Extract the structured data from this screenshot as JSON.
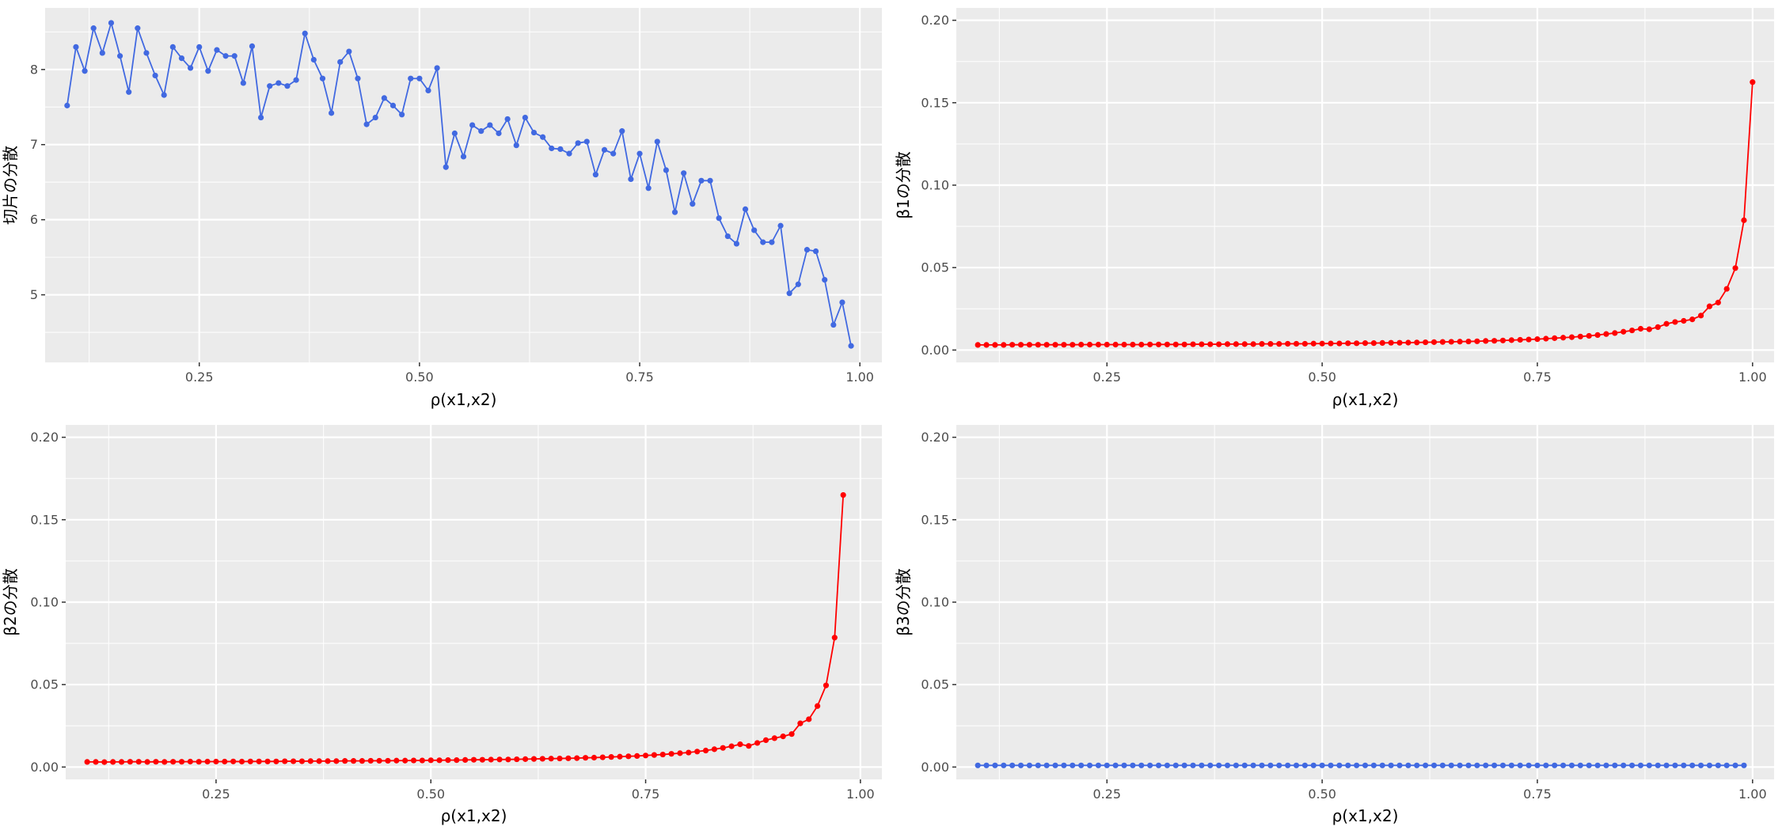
{
  "chart_data": [
    {
      "type": "line",
      "id": "intercept-variance",
      "xlabel": "ρ(x1,x2)",
      "ylabel": "切片の分散",
      "xlim": [
        0.075,
        1.025
      ],
      "ylim": [
        4.1,
        8.82
      ],
      "x_ticks": [
        0.25,
        0.5,
        0.75,
        1.0
      ],
      "x_tick_labels": [
        "0.25",
        "0.50",
        "0.75",
        "1.00"
      ],
      "y_ticks": [
        5,
        6,
        7,
        8
      ],
      "y_tick_labels": [
        "5",
        "6",
        "7",
        "8"
      ],
      "grid": true,
      "color": "#4169E1",
      "x_start": 0.1,
      "x_step": 0.01,
      "values": [
        7.52,
        8.3,
        7.98,
        8.55,
        8.22,
        8.62,
        8.18,
        7.7,
        8.55,
        8.22,
        7.92,
        7.66,
        8.3,
        8.15,
        8.02,
        8.3,
        7.98,
        8.26,
        8.18,
        8.18,
        7.82,
        8.31,
        7.36,
        7.78,
        7.82,
        7.78,
        7.86,
        8.48,
        8.13,
        7.88,
        7.42,
        8.1,
        8.24,
        7.88,
        7.27,
        7.36,
        7.62,
        7.52,
        7.4,
        7.88,
        7.88,
        7.72,
        8.02,
        6.7,
        7.15,
        6.84,
        7.26,
        7.18,
        7.26,
        7.15,
        7.34,
        6.99,
        7.36,
        7.16,
        7.1,
        6.95,
        6.94,
        6.88,
        7.02,
        7.04,
        6.6,
        6.93,
        6.88,
        7.18,
        6.54,
        6.88,
        6.42,
        7.04,
        6.66,
        6.1,
        6.62,
        6.21,
        6.52,
        6.52,
        6.02,
        5.78,
        5.68,
        6.14,
        5.86,
        5.7,
        5.7,
        5.92,
        5.02,
        5.14,
        5.6,
        5.58,
        5.2,
        4.6,
        4.9,
        4.32
      ]
    },
    {
      "type": "line",
      "id": "beta1-variance",
      "xlabel": "ρ(x1,x2)",
      "ylabel": "β1の分散",
      "xlim": [
        0.075,
        1.025
      ],
      "ylim": [
        -0.0075,
        0.2075
      ],
      "x_ticks": [
        0.25,
        0.5,
        0.75,
        1.0
      ],
      "x_tick_labels": [
        "0.25",
        "0.50",
        "0.75",
        "1.00"
      ],
      "y_ticks": [
        0.0,
        0.05,
        0.1,
        0.15,
        0.2
      ],
      "y_tick_labels": [
        "0.00",
        "0.05",
        "0.10",
        "0.15",
        "0.20"
      ],
      "grid": true,
      "color": "#FF0000",
      "x_start": 0.1,
      "x_step": 0.01,
      "values": [
        0.0031,
        0.0031,
        0.0031,
        0.0031,
        0.0032,
        0.0032,
        0.0032,
        0.0032,
        0.0032,
        0.0032,
        0.0032,
        0.0032,
        0.0033,
        0.0033,
        0.0033,
        0.0033,
        0.0033,
        0.0033,
        0.0033,
        0.0033,
        0.0034,
        0.0034,
        0.0034,
        0.0034,
        0.0034,
        0.0035,
        0.0035,
        0.0035,
        0.0035,
        0.0036,
        0.0036,
        0.0036,
        0.0036,
        0.0037,
        0.0037,
        0.0037,
        0.0038,
        0.0038,
        0.0038,
        0.0039,
        0.0039,
        0.004,
        0.004,
        0.0041,
        0.0041,
        0.0042,
        0.0042,
        0.0043,
        0.0044,
        0.0044,
        0.0045,
        0.0046,
        0.0047,
        0.0048,
        0.0049,
        0.005,
        0.0051,
        0.0052,
        0.0053,
        0.0055,
        0.0056,
        0.0058,
        0.006,
        0.0062,
        0.0064,
        0.0066,
        0.0069,
        0.0072,
        0.0075,
        0.0078,
        0.0082,
        0.0086,
        0.0091,
        0.0097,
        0.0103,
        0.0111,
        0.0119,
        0.0129,
        0.0126,
        0.0139,
        0.0159,
        0.017,
        0.0177,
        0.0186,
        0.0209,
        0.0265,
        0.0288,
        0.0371,
        0.0497,
        0.0787,
        0.1625
      ]
    },
    {
      "type": "line",
      "id": "beta2-variance",
      "xlabel": "ρ(x1,x2)",
      "ylabel": "β2の分散",
      "xlim": [
        0.075,
        1.025
      ],
      "ylim": [
        -0.0075,
        0.2075
      ],
      "x_ticks": [
        0.25,
        0.5,
        0.75,
        1.0
      ],
      "x_tick_labels": [
        "0.25",
        "0.50",
        "0.75",
        "1.00"
      ],
      "y_ticks": [
        0.0,
        0.05,
        0.1,
        0.15,
        0.2
      ],
      "y_tick_labels": [
        "0.00",
        "0.05",
        "0.10",
        "0.15",
        "0.20"
      ],
      "grid": true,
      "color": "#FF0000",
      "x_start": 0.1,
      "x_step": 0.01,
      "values": [
        0.0031,
        0.0031,
        0.003,
        0.0031,
        0.0031,
        0.0032,
        0.0032,
        0.0031,
        0.0032,
        0.0031,
        0.0032,
        0.0032,
        0.0033,
        0.0032,
        0.0033,
        0.0033,
        0.0033,
        0.0034,
        0.0033,
        0.0034,
        0.0034,
        0.0034,
        0.0034,
        0.0035,
        0.0035,
        0.0035,
        0.0036,
        0.0036,
        0.0036,
        0.0036,
        0.0037,
        0.0037,
        0.0037,
        0.0038,
        0.0038,
        0.0038,
        0.0039,
        0.0039,
        0.004,
        0.004,
        0.0041,
        0.0041,
        0.0042,
        0.0042,
        0.0043,
        0.0044,
        0.0044,
        0.0045,
        0.0046,
        0.0046,
        0.0047,
        0.0048,
        0.0049,
        0.005,
        0.0051,
        0.0052,
        0.0053,
        0.0054,
        0.0056,
        0.0057,
        0.0059,
        0.0061,
        0.0063,
        0.0065,
        0.0067,
        0.007,
        0.0073,
        0.0076,
        0.008,
        0.0084,
        0.0088,
        0.0094,
        0.01,
        0.0108,
        0.0116,
        0.0126,
        0.0138,
        0.0128,
        0.0146,
        0.0163,
        0.0175,
        0.0186,
        0.02,
        0.0265,
        0.029,
        0.037,
        0.0495,
        0.0785,
        0.165
      ]
    },
    {
      "type": "line",
      "id": "beta3-variance",
      "xlabel": "ρ(x1,x2)",
      "ylabel": "β3の分散",
      "xlim": [
        0.075,
        1.025
      ],
      "ylim": [
        -0.0075,
        0.2075
      ],
      "x_ticks": [
        0.25,
        0.5,
        0.75,
        1.0
      ],
      "x_tick_labels": [
        "0.25",
        "0.50",
        "0.75",
        "1.00"
      ],
      "y_ticks": [
        0.0,
        0.05,
        0.1,
        0.15,
        0.2
      ],
      "y_tick_labels": [
        "0.00",
        "0.05",
        "0.10",
        "0.15",
        "0.20"
      ],
      "grid": true,
      "color": "#4169E1",
      "x_start": 0.1,
      "x_step": 0.01,
      "values": [
        0.001,
        0.001,
        0.001,
        0.001,
        0.001,
        0.001,
        0.001,
        0.001,
        0.001,
        0.001,
        0.001,
        0.001,
        0.001,
        0.001,
        0.001,
        0.001,
        0.001,
        0.001,
        0.001,
        0.001,
        0.001,
        0.001,
        0.001,
        0.001,
        0.001,
        0.001,
        0.001,
        0.001,
        0.001,
        0.001,
        0.001,
        0.001,
        0.001,
        0.001,
        0.001,
        0.001,
        0.001,
        0.001,
        0.001,
        0.001,
        0.001,
        0.001,
        0.001,
        0.001,
        0.001,
        0.001,
        0.001,
        0.001,
        0.001,
        0.001,
        0.001,
        0.001,
        0.001,
        0.001,
        0.001,
        0.001,
        0.001,
        0.001,
        0.001,
        0.001,
        0.001,
        0.001,
        0.001,
        0.001,
        0.001,
        0.001,
        0.001,
        0.001,
        0.001,
        0.001,
        0.001,
        0.001,
        0.001,
        0.001,
        0.001,
        0.001,
        0.001,
        0.001,
        0.001,
        0.001,
        0.001,
        0.001,
        0.001,
        0.001,
        0.001,
        0.001,
        0.001,
        0.001,
        0.001,
        0.001
      ]
    }
  ]
}
